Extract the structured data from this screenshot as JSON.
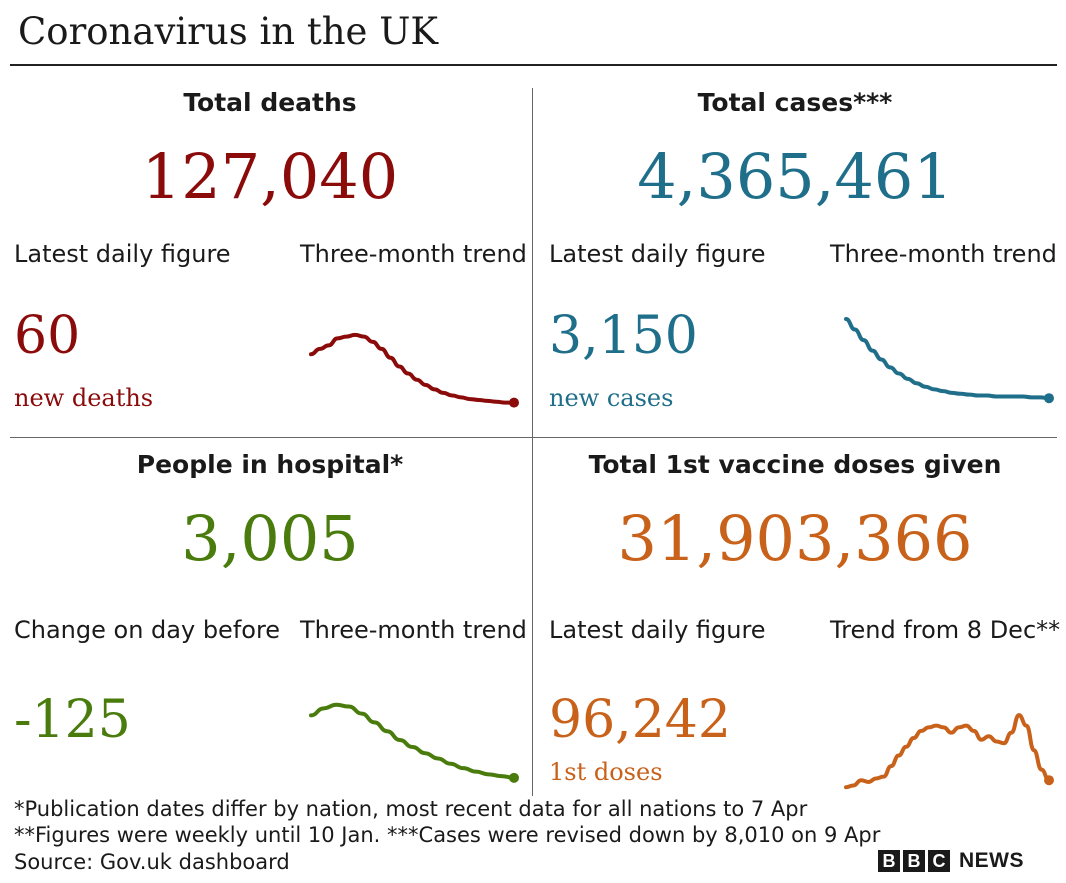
{
  "title": "Coronavirus in the UK",
  "colors": {
    "deaths": "#8b0a0a",
    "cases": "#1f6f8b",
    "hospital": "#4a7c0d",
    "vaccine": "#c8611a"
  },
  "panels": {
    "deaths": {
      "heading": "Total deaths",
      "total": "127,040",
      "sub_left": "Latest daily figure",
      "sub_right": "Three-month trend",
      "daily": "60",
      "daily_note": "new deaths"
    },
    "cases": {
      "heading": "Total cases***",
      "total": "4,365,461",
      "sub_left": "Latest daily figure",
      "sub_right": "Three-month trend",
      "daily": "3,150",
      "daily_note": "new cases"
    },
    "hospital": {
      "heading": "People in hospital*",
      "total": "3,005",
      "sub_left": "Change on day before",
      "sub_right": "Three-month trend",
      "daily": "-125",
      "daily_note": ""
    },
    "vaccine": {
      "heading": "Total 1st vaccine doses given",
      "total": "31,903,366",
      "sub_left": "Latest daily figure",
      "sub_right": "Trend from 8 Dec**",
      "daily": "96,242",
      "daily_note": "1st doses"
    }
  },
  "trends": {
    "deaths": [
      60,
      66,
      70,
      78,
      80,
      82,
      80,
      74,
      66,
      56,
      46,
      38,
      31,
      25,
      20,
      16,
      13,
      11,
      9,
      8,
      7,
      6,
      5,
      5
    ],
    "cases": [
      100,
      88,
      76,
      64,
      54,
      45,
      38,
      32,
      27,
      23,
      20,
      18,
      16,
      15,
      14,
      13,
      13,
      12,
      12,
      12,
      12,
      11,
      11,
      10
    ],
    "hospital": [
      78,
      86,
      90,
      88,
      80,
      70,
      60,
      50,
      42,
      35,
      29,
      23,
      18,
      14,
      11,
      9,
      7
    ],
    "vaccine": [
      2,
      4,
      10,
      8,
      12,
      14,
      26,
      38,
      48,
      58,
      66,
      70,
      72,
      70,
      64,
      70,
      72,
      66,
      56,
      60,
      54,
      52,
      64,
      84,
      72,
      44,
      22,
      10
    ]
  },
  "footnotes": [
    "*Publication dates differ by nation, most recent data for all nations to 7 Apr",
    "**Figures were weekly until 10 Jan. ***Cases were revised down by 8,010 on 9 Apr",
    "Source: Gov.uk dashboard"
  ],
  "logo": {
    "letters": [
      "B",
      "B",
      "C"
    ],
    "news": "NEWS"
  }
}
